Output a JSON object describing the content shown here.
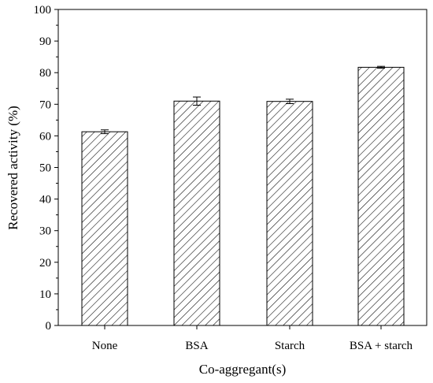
{
  "chart_data": {
    "type": "bar",
    "categories": [
      "None",
      "BSA",
      "Starch",
      "BSA + starch"
    ],
    "values": [
      61.3,
      71.0,
      70.9,
      81.7
    ],
    "errors": [
      0.6,
      1.3,
      0.7,
      0.3
    ],
    "title": "",
    "xlabel": "Co-aggregant(s)",
    "ylabel": "Recovered activity (%)",
    "ylim": [
      0,
      100
    ],
    "yticks": [
      0,
      10,
      20,
      30,
      40,
      50,
      60,
      70,
      80,
      90,
      100
    ],
    "grid": false,
    "bar_fill": "hatched",
    "colors": {
      "bar_stroke": "#000000",
      "hatch": "#000000",
      "background": "#ffffff"
    }
  }
}
